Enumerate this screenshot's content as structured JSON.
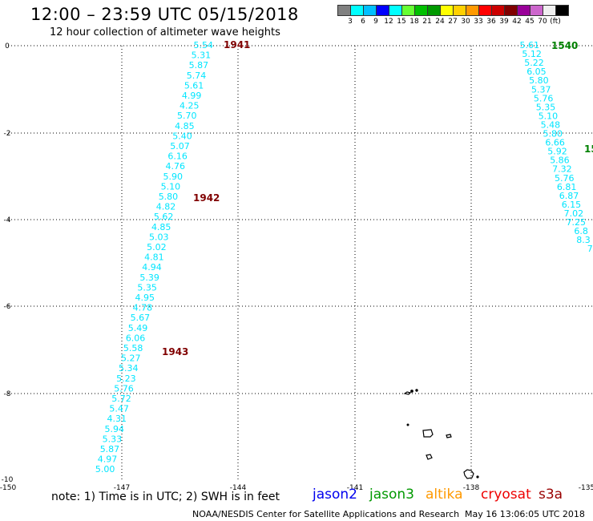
{
  "header": {
    "title": "12:00 – 23:59 UTC 05/15/2018",
    "subtitle": "12 hour collection of altimeter wave heights"
  },
  "legend": {
    "colors": [
      "#808080",
      "#00ffff",
      "#00bfff",
      "#0000ff",
      "#00ffff",
      "#66ff33",
      "#00c000",
      "#009900",
      "#ffff00",
      "#ffd000",
      "#ff9900",
      "#ff0000",
      "#cc0000",
      "#800000",
      "#990099",
      "#cc66cc",
      "#f0f0f0",
      "#000000"
    ],
    "labels": [
      "3",
      "6",
      "9",
      "12",
      "15",
      "18",
      "21",
      "24",
      "27",
      "30",
      "33",
      "36",
      "39",
      "42",
      "45",
      "70",
      "(ft)"
    ]
  },
  "axes": {
    "lon_ticks": [
      "-150",
      "-147",
      "-144",
      "-141",
      "-138",
      "-135"
    ],
    "lat_ticks": [
      "0",
      "-2",
      "-4",
      "-6",
      "-8",
      "-10"
    ]
  },
  "tracks": [
    {
      "pass_labels": [
        "1941",
        "1942",
        "1943"
      ],
      "pass_color": "#800000",
      "values_color": "#00e5ff",
      "values": [
        "5.54",
        "5.31",
        "5.87",
        "5.74",
        "5.61",
        "4.99",
        "4.25",
        "5.70",
        "4.85",
        "5.40",
        "5.07",
        "6.16",
        "4.76",
        "5.90",
        "5.10",
        "5.80",
        "4.82",
        "5.62",
        "4.85",
        "5.03",
        "5.02",
        "4.81",
        "4.94",
        "5.39",
        "5.35",
        "4.95",
        "4.78",
        "5.67",
        "5.49",
        "6.06",
        "5.58",
        "5.27",
        "5.34",
        "5.23",
        "5.76",
        "5.72",
        "5.47",
        "4.31",
        "5.94",
        "5.33",
        "5.87",
        "4.97",
        "5.00"
      ]
    },
    {
      "pass_labels": [
        "1540",
        "15"
      ],
      "pass_color": "#008000",
      "values_color": "#00e5ff",
      "values": [
        "5.61",
        "5.12",
        "5.22",
        "6.05",
        "5.80",
        "5.37",
        "5.76",
        "5.35",
        "5.10",
        "5.48",
        "5.80",
        "6.66",
        "5.92",
        "5.86",
        "7.32",
        "5.76",
        "6.81",
        "6.87",
        "6.15",
        "7.02",
        "7.25",
        "6.8",
        "8.3",
        "7"
      ]
    }
  ],
  "footer": {
    "note": "note:  1) Time is in UTC;  2) SWH is in feet",
    "missions": [
      {
        "name": "jason2",
        "color": "#0000ee"
      },
      {
        "name": "jason3",
        "color": "#009900"
      },
      {
        "name": "altika",
        "color": "#ff9900"
      },
      {
        "name": "cryosat",
        "color": "#ee0000"
      },
      {
        "name": "s3a",
        "color": "#990000"
      }
    ],
    "credit": "NOAA/NESDIS Center for Satellite Applications and Research",
    "timestamp": "May 16 13:06:05 UTC 2018"
  }
}
